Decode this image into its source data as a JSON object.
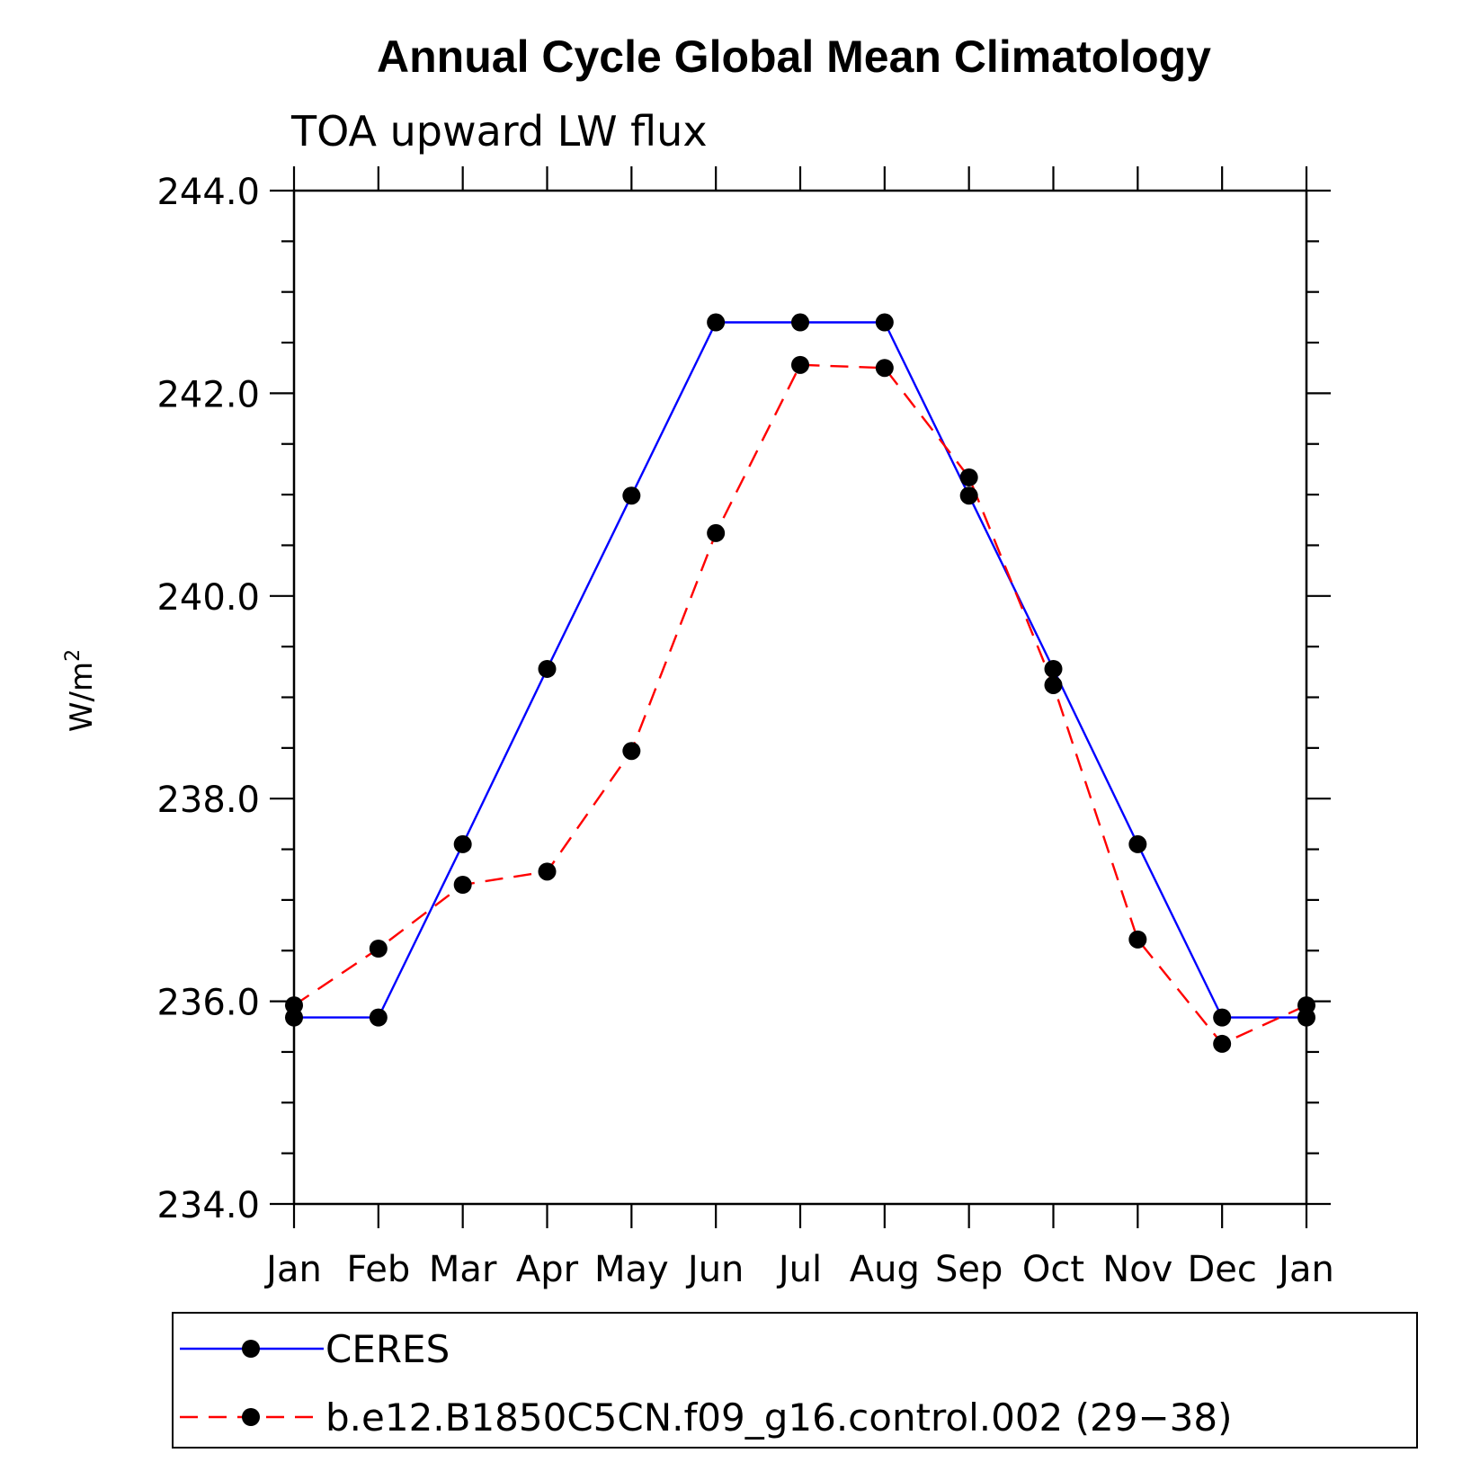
{
  "chart_data": {
    "type": "line",
    "title": "Annual Cycle Global Mean Climatology",
    "subtitle": "TOA upward LW flux",
    "ylabel": "W/m",
    "ylabel_superscript": "2",
    "categories": [
      "Jan",
      "Feb",
      "Mar",
      "Apr",
      "May",
      "Jun",
      "Jul",
      "Aug",
      "Sep",
      "Oct",
      "Nov",
      "Dec",
      "Jan"
    ],
    "ylim": [
      234.0,
      244.0
    ],
    "yticks": [
      "234.0",
      "236.0",
      "238.0",
      "240.0",
      "242.0",
      "244.0"
    ],
    "legend_position": "bottom",
    "series": [
      {
        "name": "CERES",
        "color": "#0000ff",
        "dash": "solid",
        "values": [
          235.84,
          235.84,
          237.55,
          239.28,
          240.99,
          242.7,
          242.7,
          242.7,
          240.99,
          239.28,
          237.55,
          235.84,
          235.84
        ]
      },
      {
        "name": "b.e12.B1850C5CN.f09_g16.control.002 (29−38)",
        "color": "#ff0000",
        "dash": "dashed",
        "values": [
          235.96,
          236.52,
          237.15,
          237.28,
          238.47,
          240.62,
          242.28,
          242.25,
          241.17,
          239.12,
          236.61,
          235.58,
          235.96
        ]
      }
    ]
  }
}
